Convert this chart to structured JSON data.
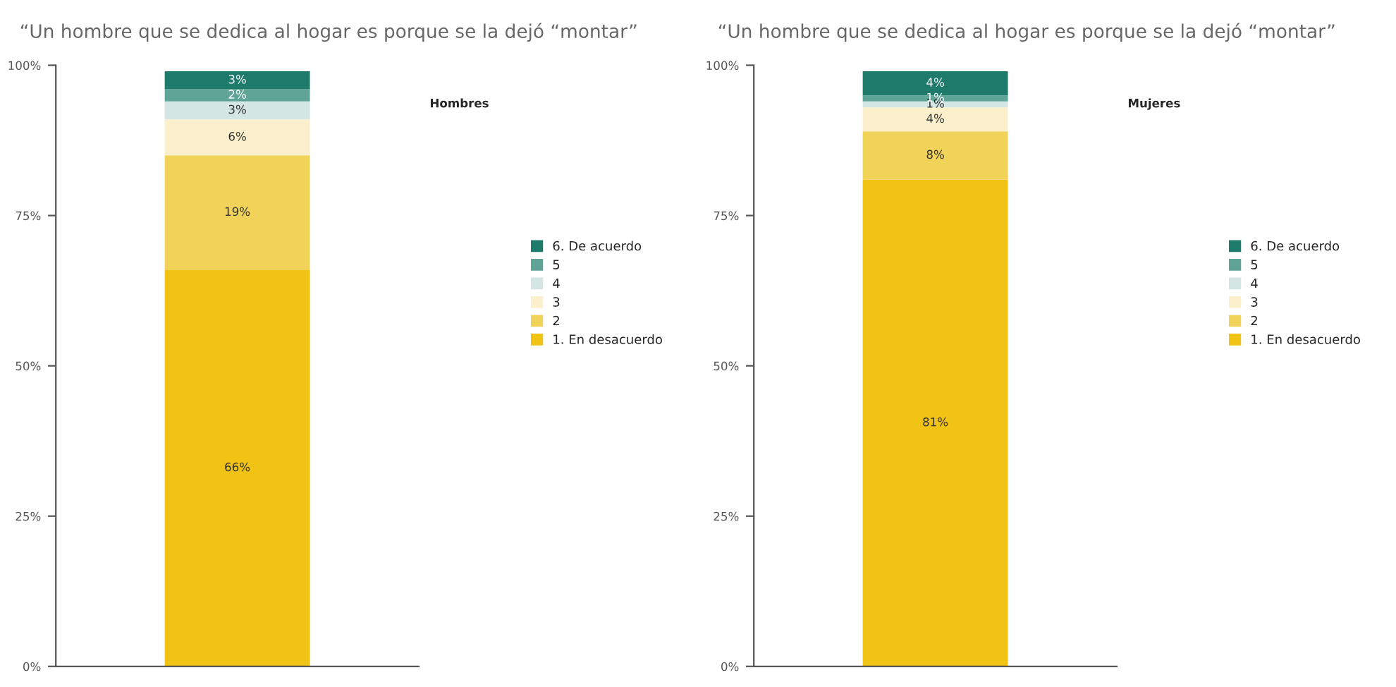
{
  "chart_data": [
    {
      "type": "bar",
      "stacked": true,
      "title": "“Un hombre que se dedica al hogar es porque se la dejó “montar”",
      "annotations": [
        "Hombres"
      ],
      "categories": [
        null
      ],
      "ylim": [
        0,
        100
      ],
      "yticks": [
        {
          "value": 0,
          "label": "0%"
        },
        {
          "value": 25,
          "label": "25%"
        },
        {
          "value": 50,
          "label": "50%"
        },
        {
          "value": 75,
          "label": "75%"
        },
        {
          "value": 100,
          "label": "100%"
        }
      ],
      "tick_labels": "y",
      "legend": "right",
      "grid": false,
      "series": [
        {
          "name": "1. En desacuerdo",
          "color": "#f0c314",
          "values": [
            66
          ],
          "value_labels": [
            "66%"
          ]
        },
        {
          "name": "2",
          "color": "#f2d35a",
          "values": [
            19
          ],
          "value_labels": [
            "19%"
          ]
        },
        {
          "name": "3",
          "color": "#fcf0cc",
          "values": [
            6
          ],
          "value_labels": [
            "6%"
          ]
        },
        {
          "name": "4",
          "color": "#d4e6e4",
          "values": [
            3
          ],
          "value_labels": [
            "3%"
          ]
        },
        {
          "name": "5",
          "color": "#5fa496",
          "values": [
            2
          ],
          "value_labels": [
            "2%"
          ]
        },
        {
          "name": "6. De acuerdo",
          "color": "#1e7b6c",
          "values": [
            3
          ],
          "value_labels": [
            "3%"
          ]
        }
      ]
    },
    {
      "type": "bar",
      "stacked": true,
      "title": "“Un hombre que se dedica al hogar es porque se la dejó “montar”",
      "annotations": [
        "Mujeres"
      ],
      "categories": [
        null
      ],
      "ylim": [
        0,
        100
      ],
      "yticks": [
        {
          "value": 0,
          "label": "0%"
        },
        {
          "value": 25,
          "label": "25%"
        },
        {
          "value": 50,
          "label": "50%"
        },
        {
          "value": 75,
          "label": "75%"
        },
        {
          "value": 100,
          "label": "100%"
        }
      ],
      "tick_labels": "y",
      "legend": "right",
      "grid": false,
      "series": [
        {
          "name": "1. En desacuerdo",
          "color": "#f0c314",
          "values": [
            81
          ],
          "value_labels": [
            "81%"
          ]
        },
        {
          "name": "2",
          "color": "#f2d35a",
          "values": [
            8
          ],
          "value_labels": [
            "8%"
          ]
        },
        {
          "name": "3",
          "color": "#fcf0cc",
          "values": [
            4
          ],
          "value_labels": [
            "4%"
          ]
        },
        {
          "name": "4",
          "color": "#d4e6e4",
          "values": [
            1
          ],
          "value_labels": [
            "1%"
          ]
        },
        {
          "name": "5",
          "color": "#5fa496",
          "values": [
            1
          ],
          "value_labels": [
            "1%"
          ]
        },
        {
          "name": "6. De acuerdo",
          "color": "#1e7b6c",
          "values": [
            4
          ],
          "value_labels": [
            "4%"
          ]
        }
      ]
    }
  ]
}
